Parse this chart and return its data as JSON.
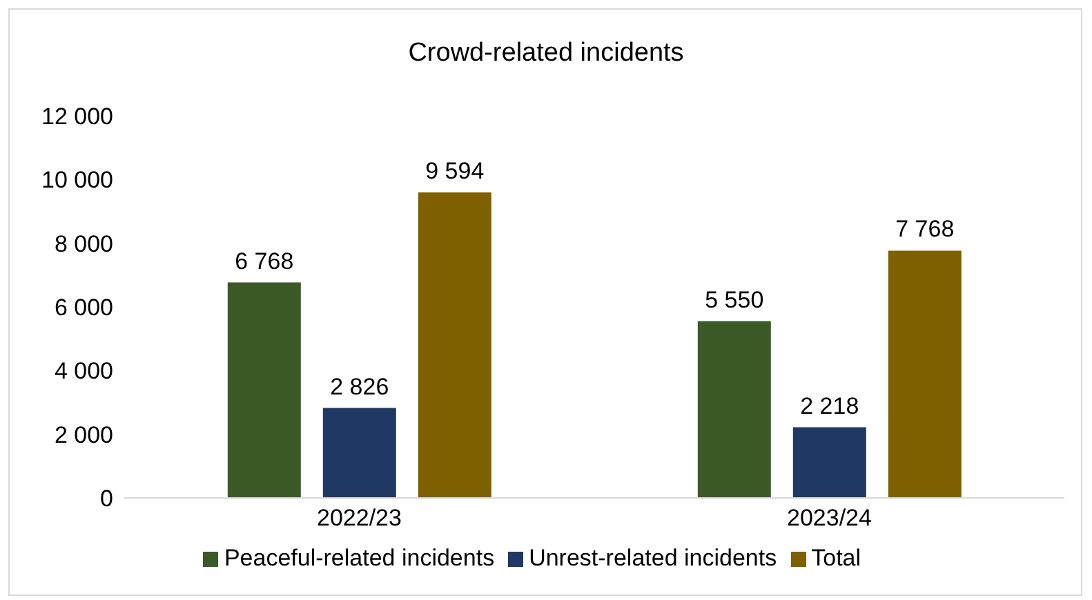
{
  "chart_data": {
    "type": "bar",
    "title": "Crowd-related incidents",
    "categories": [
      "2022/23",
      "2023/24"
    ],
    "series": [
      {
        "name": "Peaceful-related incidents",
        "color": "#3b5a27",
        "values": [
          6768,
          5550
        ],
        "value_labels": [
          "6 768",
          "5 550"
        ]
      },
      {
        "name": "Unrest-related incidents",
        "color": "#203864",
        "values": [
          2826,
          2218
        ],
        "value_labels": [
          "2 826",
          "2 218"
        ]
      },
      {
        "name": "Total",
        "color": "#7f6000",
        "values": [
          9594,
          7768
        ],
        "value_labels": [
          "9 594",
          "7 768"
        ]
      }
    ],
    "ylim": [
      0,
      12000
    ],
    "yticks": [
      {
        "value": 0,
        "label": "0"
      },
      {
        "value": 2000,
        "label": "2 000"
      },
      {
        "value": 4000,
        "label": "4 000"
      },
      {
        "value": 6000,
        "label": "6 000"
      },
      {
        "value": 8000,
        "label": "8 000"
      },
      {
        "value": 10000,
        "label": "10 000"
      },
      {
        "value": 12000,
        "label": "12 000"
      }
    ],
    "grid": false,
    "legend": "bottom"
  }
}
